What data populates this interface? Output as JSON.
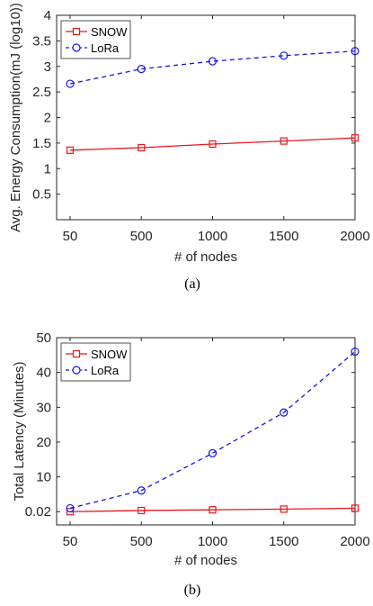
{
  "chart_data": [
    {
      "type": "line",
      "caption": "(a)",
      "xlabel": "# of nodes",
      "ylabel": "Avg. Energy Consumption(mJ (log10))",
      "categories": [
        "50",
        "500",
        "1000",
        "1500",
        "2000"
      ],
      "yticks": [
        "0.5",
        "1",
        "1.5",
        "2",
        "2.5",
        "3",
        "3.5",
        "4"
      ],
      "ylim": [
        0,
        4
      ],
      "grid": false,
      "legend_position": "top-left",
      "series": [
        {
          "name": "SNOW",
          "values": [
            1.36,
            1.41,
            1.48,
            1.54,
            1.6
          ],
          "color": "#e8171b",
          "marker": "square",
          "line": "solid"
        },
        {
          "name": "LoRa",
          "values": [
            2.66,
            2.95,
            3.1,
            3.21,
            3.3
          ],
          "color": "#1414e6",
          "marker": "circle",
          "line": "dashed"
        }
      ]
    },
    {
      "type": "line",
      "caption": "(b)",
      "xlabel": "# of nodes",
      "ylabel": "Total Latency (Minutes)",
      "categories": [
        "50",
        "500",
        "1000",
        "1500",
        "2000"
      ],
      "yticks": [
        "0.02",
        "10",
        "20",
        "30",
        "40",
        "50"
      ],
      "ylim": [
        -3.8,
        50
      ],
      "grid": false,
      "legend_position": "top-left",
      "series": [
        {
          "name": "SNOW",
          "values": [
            0.02,
            0.35,
            0.55,
            0.75,
            1.0
          ],
          "color": "#e8171b",
          "marker": "square",
          "line": "solid"
        },
        {
          "name": "LoRa",
          "values": [
            1.0,
            6.1,
            16.8,
            28.5,
            46.0
          ],
          "color": "#1414e6",
          "marker": "circle",
          "line": "dashed"
        }
      ]
    }
  ]
}
